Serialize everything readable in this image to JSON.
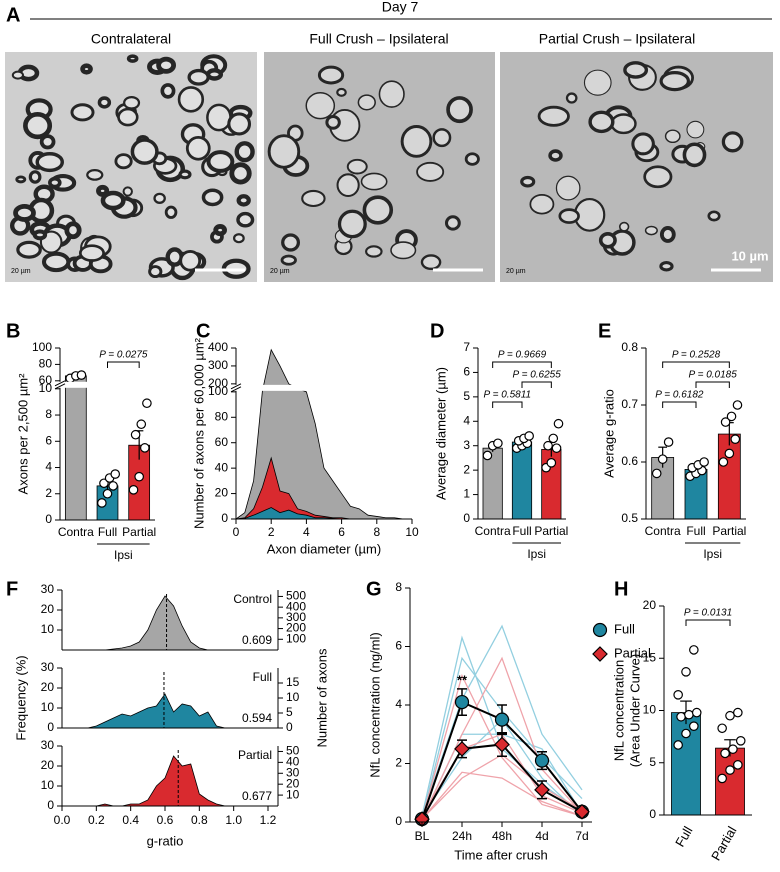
{
  "panel_a": {
    "label": "A",
    "header": "Day 7",
    "images": [
      {
        "title": "Contralateral",
        "scale_label": "20 µm"
      },
      {
        "title": "Full Crush – Ipsilateral",
        "scale_label": "20 µm"
      },
      {
        "title": "Partial Crush – Ipsilateral",
        "scale_label": "20 µm"
      }
    ],
    "scale_bar_label": "10 µm"
  },
  "chart_data": [
    {
      "type": "bar",
      "panel": "B",
      "categories": [
        "Contra",
        "Full",
        "Partial"
      ],
      "colors": [
        "#a6a6a6",
        "#1f86a0",
        "#d92a2f"
      ],
      "values": [
        66,
        2.6,
        5.7
      ],
      "errors": [
        3,
        0.4,
        1.1
      ],
      "points": [
        [
          63,
          66,
          67
        ],
        [
          1.3,
          2.0,
          2.6,
          2.8,
          3.2,
          3.5
        ],
        [
          2.3,
          3.3,
          5.5,
          6.5,
          7.3,
          8.9
        ]
      ],
      "ylim": [
        0,
        100
      ],
      "ybreak": [
        10,
        60
      ],
      "yticks": [
        0,
        2,
        4,
        6,
        8,
        10,
        60,
        80,
        100
      ],
      "ylabel": "Axons per 2,500 µm²",
      "annotations": [
        {
          "text": "P = 0.0275",
          "from": 1,
          "to": 2
        }
      ],
      "groups": [
        {
          "label": "Ipsi",
          "from": 1,
          "to": 2
        }
      ]
    },
    {
      "type": "area",
      "panel": "C",
      "x": [
        0,
        0.5,
        1,
        1.5,
        2,
        2.5,
        3,
        3.5,
        4,
        4.5,
        5,
        5.5,
        6,
        6.5,
        7,
        7.5,
        8,
        8.5,
        9,
        9.5,
        10
      ],
      "series": [
        {
          "color": "#a6a6a6",
          "values": [
            0,
            5,
            30,
            110,
            390,
            300,
            200,
            140,
            100,
            75,
            40,
            30,
            20,
            10,
            8,
            3,
            2,
            1,
            1,
            0,
            0
          ]
        },
        {
          "color": "#d92a2f",
          "values": [
            0,
            1,
            8,
            25,
            48,
            22,
            20,
            8,
            6,
            3,
            2,
            1,
            1,
            0,
            0,
            0,
            0,
            0,
            0,
            0,
            0
          ]
        },
        {
          "color": "#1f86a0",
          "values": [
            0,
            0.5,
            3,
            6,
            9,
            5,
            7,
            4,
            3,
            1,
            1,
            0.5,
            0,
            0,
            0,
            0,
            0,
            0,
            0,
            0,
            0
          ]
        }
      ],
      "xlim": [
        0,
        10
      ],
      "xticks": [
        0,
        2,
        4,
        6,
        8,
        10
      ],
      "ylim": [
        0,
        400
      ],
      "ybreak": [
        100,
        200
      ],
      "yticks": [
        0,
        20,
        40,
        60,
        80,
        100,
        200,
        300,
        400
      ],
      "xlabel": "Axon diameter (µm)",
      "ylabel": "Number of axons per 60,000 µm²"
    },
    {
      "type": "bar",
      "panel": "D",
      "categories": [
        "Contra",
        "Full",
        "Partial"
      ],
      "colors": [
        "#a6a6a6",
        "#1f86a0",
        "#d92a2f"
      ],
      "values": [
        2.9,
        3.15,
        2.85
      ],
      "errors": [
        0.15,
        0.1,
        0.3
      ],
      "points": [
        [
          2.6,
          3.0,
          3.1
        ],
        [
          2.9,
          3.0,
          3.1,
          3.2,
          3.3,
          3.4
        ],
        [
          2.1,
          2.3,
          2.9,
          3.0,
          3.3,
          3.9
        ]
      ],
      "ylim": [
        0,
        7
      ],
      "yticks": [
        0,
        1,
        2,
        3,
        4,
        5,
        6,
        7
      ],
      "ylabel": "Average diameter (µm)",
      "annotations": [
        {
          "text": "P = 0.5811",
          "from": 0,
          "to": 1
        },
        {
          "text": "P = 0.6255",
          "from": 1,
          "to": 2
        },
        {
          "text": "P = 0.9669",
          "from": 0,
          "to": 2
        }
      ],
      "groups": [
        {
          "label": "Ipsi",
          "from": 1,
          "to": 2
        }
      ]
    },
    {
      "type": "bar",
      "panel": "E",
      "categories": [
        "Contra",
        "Full",
        "Partial"
      ],
      "colors": [
        "#a6a6a6",
        "#1f86a0",
        "#d92a2f"
      ],
      "values": [
        0.608,
        0.587,
        0.649
      ],
      "errors": [
        0.018,
        0.006,
        0.02
      ],
      "points": [
        [
          0.58,
          0.605,
          0.635
        ],
        [
          0.575,
          0.58,
          0.585,
          0.59,
          0.595,
          0.6
        ],
        [
          0.6,
          0.615,
          0.64,
          0.67,
          0.68,
          0.7
        ]
      ],
      "ylim": [
        0.5,
        0.8
      ],
      "yticks": [
        0.5,
        0.6,
        0.7,
        0.8
      ],
      "ylabel": "Average g-ratio",
      "annotations": [
        {
          "text": "P = 0.6182",
          "from": 0,
          "to": 1
        },
        {
          "text": "P = 0.0185",
          "from": 1,
          "to": 2
        },
        {
          "text": "P = 0.2528",
          "from": 0,
          "to": 2
        }
      ],
      "groups": [
        {
          "label": "Ipsi",
          "from": 1,
          "to": 2
        }
      ]
    },
    {
      "type": "density",
      "panel": "F",
      "x": [
        0.15,
        0.2,
        0.25,
        0.3,
        0.35,
        0.4,
        0.45,
        0.5,
        0.55,
        0.6,
        0.65,
        0.7,
        0.75,
        0.8,
        0.85,
        0.9,
        0.95
      ],
      "xlim": [
        0,
        1.2
      ],
      "xticks": [
        {
          "value": 0,
          "label": "0.0"
        },
        0.2,
        0.4,
        0.6,
        0.8,
        {
          "value": 1,
          "label": "1.0"
        },
        1.2
      ],
      "xlabel": "g-ratio",
      "ylabel": "Frequency (%)",
      "y2label": "Number of axons",
      "panels": [
        {
          "name": "Control",
          "color": "#a6a6a6",
          "label_color": "#808080",
          "values": [
            0,
            0,
            0,
            0.5,
            1,
            2,
            4,
            10,
            20,
            27,
            22,
            12,
            4,
            1,
            0,
            0,
            0
          ],
          "mean": 0.609,
          "ylim": [
            0,
            30
          ],
          "yticks": [
            10,
            20,
            30
          ],
          "y2lim": [
            0,
            560
          ],
          "y2ticks": [
            100,
            200,
            300,
            400,
            500
          ]
        },
        {
          "name": "Full",
          "color": "#1f86a0",
          "label_color": "#1f86a0",
          "values": [
            0,
            1,
            3,
            5,
            7,
            6,
            8,
            10,
            11,
            17,
            8,
            12,
            11,
            6,
            8,
            1,
            0
          ],
          "mean": 0.594,
          "ylim": [
            0,
            30
          ],
          "yticks": [
            0,
            10,
            20,
            30
          ],
          "y2lim": [
            0,
            20
          ],
          "y2ticks": [
            0,
            5,
            10,
            15
          ]
        },
        {
          "name": "Partial",
          "color": "#d92a2f",
          "label_color": "#d92a2f",
          "values": [
            0,
            0,
            1,
            0,
            0,
            1,
            1,
            3,
            10,
            14,
            25,
            20,
            21,
            6,
            3,
            1,
            0
          ],
          "mean": 0.677,
          "ylim": [
            0,
            30
          ],
          "yticks": [
            0,
            10,
            20,
            30
          ],
          "y2lim": [
            0,
            55
          ],
          "y2ticks": [
            10,
            20,
            30,
            40,
            50
          ]
        }
      ]
    },
    {
      "type": "line",
      "panel": "G",
      "categories": [
        "BL",
        "24h",
        "48h",
        "4d",
        "7d"
      ],
      "ylim": [
        0,
        8
      ],
      "yticks": [
        0,
        2,
        4,
        6,
        8
      ],
      "ylabel": "NfL concentration (ng/ml)",
      "xlabel": "Time after crush",
      "series": [
        {
          "name": "Full",
          "color": "#1f86a0",
          "individual_color": "#93cfe0",
          "marker": "circle",
          "values": [
            0.1,
            4.1,
            3.5,
            2.1,
            0.35
          ],
          "errors": [
            0.1,
            0.45,
            0.5,
            0.3,
            0.1
          ],
          "individuals": [
            [
              0.2,
              6.3,
              2.5,
              1.3,
              0.3
            ],
            [
              0.1,
              5.6,
              3.8,
              2.2,
              0.8
            ],
            [
              0.2,
              4.2,
              6.7,
              3.0,
              1.1
            ],
            [
              0.1,
              3.0,
              3.0,
              2.5,
              0.3
            ],
            [
              0.2,
              2.2,
              3.5,
              1.5,
              0.2
            ]
          ]
        },
        {
          "name": "Partial",
          "color": "#d92a2f",
          "individual_color": "#efa3aa",
          "marker": "diamond",
          "values": [
            0.1,
            2.5,
            2.65,
            1.1,
            0.35
          ],
          "errors": [
            0.05,
            0.3,
            0.4,
            0.3,
            0.1
          ],
          "individuals": [
            [
              0.1,
              5.0,
              2.2,
              0.6,
              0.2
            ],
            [
              0.1,
              3.0,
              5.6,
              1.8,
              0.3
            ],
            [
              0.2,
              2.5,
              3.0,
              0.9,
              0.3
            ],
            [
              0.1,
              1.7,
              1.5,
              0.7,
              0.2
            ],
            [
              0.1,
              1.5,
              2.3,
              1.2,
              0.4
            ]
          ]
        }
      ],
      "annotations": [
        {
          "text": "**",
          "category": 1
        }
      ]
    },
    {
      "type": "bar",
      "panel": "H",
      "categories": [
        "Full",
        "Partial"
      ],
      "colors": [
        "#1f86a0",
        "#d92a2f"
      ],
      "values": [
        9.8,
        6.4
      ],
      "errors": [
        1.1,
        0.8
      ],
      "points": [
        [
          6.7,
          7.8,
          8.5,
          9.4,
          9.6,
          9.8,
          11.5,
          13.7,
          15.8
        ],
        [
          3.5,
          4.3,
          4.8,
          5.9,
          6.3,
          7.1,
          8.3,
          9.5,
          9.8
        ]
      ],
      "ylim": [
        0,
        20
      ],
      "yticks": [
        0,
        5,
        10,
        15,
        20
      ],
      "ylabel": [
        "NfL concentration",
        "(Area Under Curve)"
      ],
      "annotations": [
        {
          "text": "P = 0.0131",
          "from": 0,
          "to": 1
        }
      ]
    }
  ]
}
